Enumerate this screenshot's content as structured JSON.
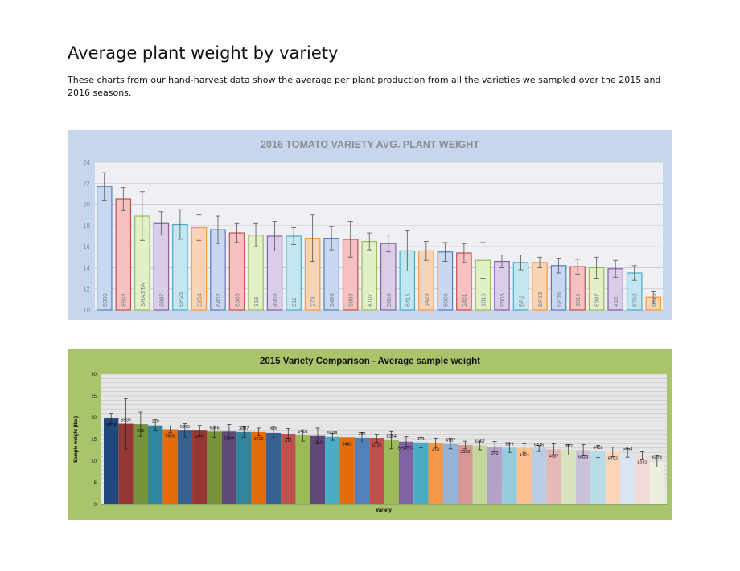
{
  "page": {
    "title": "Average plant weight by variety",
    "intro": "These charts from our hand-harvest data show the average per plant production from all the varieties we sampled over the 2015 and 2016 seasons."
  },
  "chart_data": [
    {
      "type": "bar",
      "title": "2016 TOMATO VARIETY AVG. PLANT WEIGHT",
      "xlabel": "",
      "ylabel": "",
      "ylim": [
        10,
        24
      ],
      "yticks": [
        10,
        12,
        14,
        16,
        18,
        20,
        22,
        24
      ],
      "grid": true,
      "legend": "none",
      "categories": [
        "5900",
        "8504",
        "SHASTA",
        "3887",
        "BP25",
        "5254",
        "6402",
        "6366",
        "319",
        "4909",
        "311",
        "273",
        "2493",
        "3888",
        "4707",
        "5608",
        "6415",
        "1428",
        "5003",
        "2401",
        "1310",
        "9905",
        "BP2",
        "BP13",
        "BP16",
        "1015",
        "6397",
        "410",
        "5702",
        "6416"
      ],
      "values": [
        21.7,
        20.5,
        18.9,
        18.2,
        18.1,
        17.8,
        17.6,
        17.3,
        17.1,
        17.0,
        17.0,
        16.8,
        16.8,
        16.7,
        16.5,
        16.3,
        15.6,
        15.6,
        15.5,
        15.4,
        14.7,
        14.6,
        14.5,
        14.5,
        14.2,
        14.1,
        14.0,
        13.9,
        13.5,
        11.2
      ],
      "errors": [
        1.3,
        1.1,
        2.3,
        1.1,
        1.4,
        1.2,
        1.3,
        0.9,
        1.1,
        1.4,
        0.8,
        2.2,
        1.1,
        1.7,
        0.8,
        0.8,
        1.9,
        0.9,
        0.9,
        0.9,
        1.7,
        0.6,
        0.7,
        0.5,
        0.7,
        0.7,
        1.0,
        0.8,
        0.7,
        0.6
      ],
      "colors": {
        "background": "#c7d6ec",
        "plot": "#eef0f4",
        "title": "#8a8f98",
        "fills": [
          "#c9d8f0",
          "#f7c1c1",
          "#e2f0c7",
          "#d9cdea",
          "#c3e6f0",
          "#fad5b5",
          "#c9d8f0",
          "#f7c1c1",
          "#e2f0c7",
          "#d9cdea",
          "#c3e6f0",
          "#fad5b5",
          "#c9d8f0",
          "#f7c1c1",
          "#e2f0c7",
          "#d9cdea",
          "#c3e6f0",
          "#fad5b5",
          "#c9d8f0",
          "#f7c1c1",
          "#e2f0c7",
          "#d9cdea",
          "#c3e6f0",
          "#fad5b5",
          "#c9d8f0",
          "#f7c1c1",
          "#e2f0c7",
          "#d9cdea",
          "#c3e6f0",
          "#fad5b5"
        ],
        "strokes": [
          "#4f81bd",
          "#c0504d",
          "#9bbb59",
          "#8064a2",
          "#4bacc6",
          "#f79646",
          "#4f81bd",
          "#c0504d",
          "#9bbb59",
          "#8064a2",
          "#4bacc6",
          "#f79646",
          "#4f81bd",
          "#c0504d",
          "#9bbb59",
          "#8064a2",
          "#4bacc6",
          "#f79646",
          "#4f81bd",
          "#c0504d",
          "#9bbb59",
          "#8064a2",
          "#4bacc6",
          "#f79646",
          "#4f81bd",
          "#c0504d",
          "#9bbb59",
          "#8064a2",
          "#4bacc6",
          "#f79646"
        ]
      }
    },
    {
      "type": "bar",
      "title": "2015 Variety Comparison - Average sample weight",
      "xlabel": "Variety",
      "ylabel": "Sample weight (lbs.)",
      "ylim": [
        0,
        30
      ],
      "yticks": [
        0,
        5,
        10,
        15,
        20,
        25,
        30
      ],
      "grid": true,
      "legend": "none",
      "categories": [
        "8504",
        "5900",
        "205",
        "319",
        "9905",
        "5975",
        "5003",
        "6366",
        "5804",
        "3887",
        "5202",
        "309",
        "311",
        "2401",
        "1310",
        "5608",
        "3402",
        "282",
        "1015",
        "6354",
        "SHASTA",
        "141",
        "410",
        "4707",
        "3888",
        "6357",
        "142",
        "BP3",
        "1424",
        "6416",
        "4887",
        "BP2",
        "6424",
        "6452",
        "6402",
        "5454",
        "8232",
        "6414"
      ],
      "values": [
        19.8,
        18.6,
        18.5,
        18.2,
        17.3,
        17.0,
        17.0,
        16.8,
        16.8,
        16.7,
        16.7,
        16.5,
        16.3,
        15.9,
        15.8,
        15.6,
        15.5,
        15.4,
        15.2,
        14.8,
        14.5,
        14.3,
        14.1,
        13.9,
        13.7,
        13.6,
        13.3,
        13.1,
        13.0,
        12.9,
        12.7,
        12.6,
        12.5,
        12.2,
        12.1,
        11.9,
        11.2,
        9.9
      ],
      "errors": [
        1.2,
        5.8,
        2.8,
        1.3,
        0.8,
        1.6,
        1.2,
        1.3,
        1.6,
        1.2,
        0.9,
        1.3,
        1.2,
        1.3,
        1.8,
        0.8,
        1.6,
        1.2,
        0.8,
        2.0,
        1.1,
        1.2,
        1.0,
        1.1,
        0.9,
        1.0,
        1.2,
        1.1,
        1.0,
        0.7,
        1.3,
        1.2,
        1.3,
        1.4,
        1.1,
        1.0,
        0.9,
        1.3
      ],
      "colors": {
        "background": "#a9c46a",
        "plot": "#e6e6e6",
        "title": "#111111",
        "fills": [
          "#1f497d",
          "#953735",
          "#76923c",
          "#31859c",
          "#e46c0a",
          "#366092",
          "#963634",
          "#77933c",
          "#604a7b",
          "#31849b",
          "#e26b0a",
          "#376092",
          "#c0504d",
          "#9bbb59",
          "#5f497a",
          "#4bacc6",
          "#e46c0a",
          "#4f81bd",
          "#c0504d",
          "#9bbb59",
          "#8064a2",
          "#4bacc6",
          "#f79646",
          "#95b3d7",
          "#d99694",
          "#c3d69b",
          "#b3a2c7",
          "#93cddd",
          "#fac090",
          "#b9cde5",
          "#e6b9b8",
          "#d7e4bd",
          "#ccc1da",
          "#b7dde8",
          "#fcd5b5",
          "#dce6f2",
          "#f2dcdb",
          "#ebf1de"
        ]
      }
    }
  ]
}
